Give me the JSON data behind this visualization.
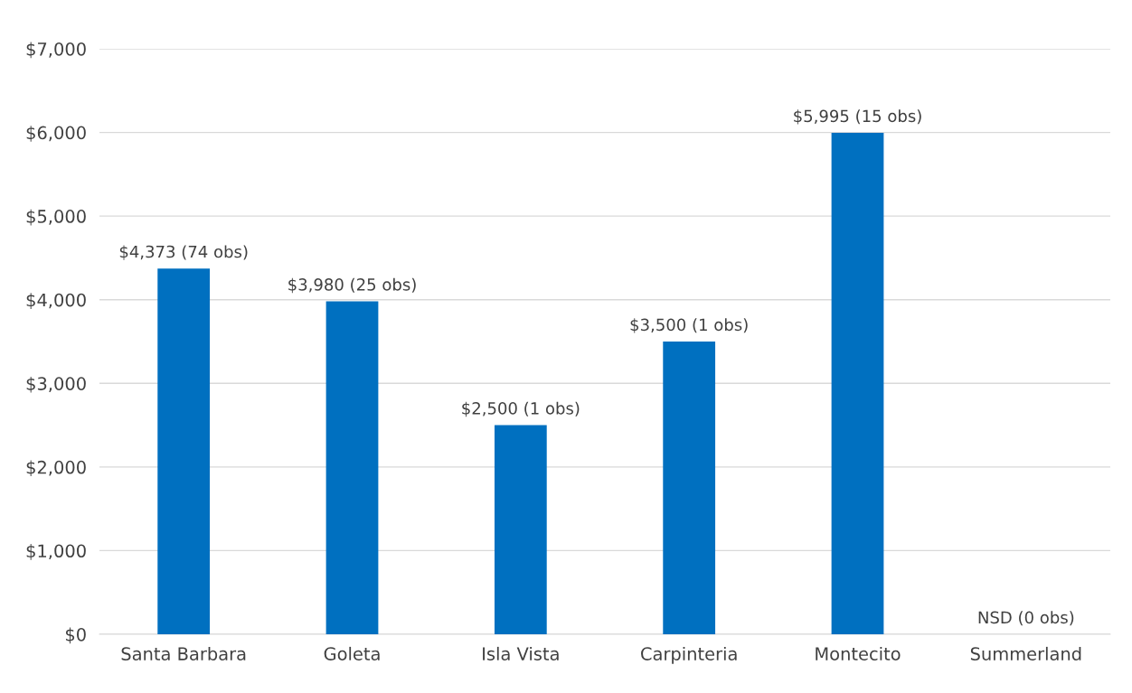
{
  "chart_data": {
    "type": "bar",
    "categories": [
      "Santa Barbara",
      "Goleta",
      "Isla Vista",
      "Carpinteria",
      "Montecito",
      "Summerland"
    ],
    "values": [
      4373,
      3980,
      2500,
      3500,
      5995,
      null
    ],
    "value_labels": [
      "$4,373 (74 obs)",
      "$3,980 (25 obs)",
      "$2,500 (1 obs)",
      "$3,500 (1 obs)",
      "$5,995 (15 obs)",
      "NSD (0 obs)"
    ],
    "color": "#0070c0",
    "ylim": [
      0,
      7000
    ],
    "yticks": [
      {
        "value": 0,
        "label": "$0"
      },
      {
        "value": 1000,
        "label": "$1,000"
      },
      {
        "value": 2000,
        "label": "$2,000"
      },
      {
        "value": 3000,
        "label": "$3,000"
      },
      {
        "value": 4000,
        "label": "$4,000"
      },
      {
        "value": 5000,
        "label": "$5,000"
      },
      {
        "value": 6000,
        "label": "$6,000"
      },
      {
        "value": 7000,
        "label": "$7,000"
      }
    ],
    "grid": "y"
  }
}
